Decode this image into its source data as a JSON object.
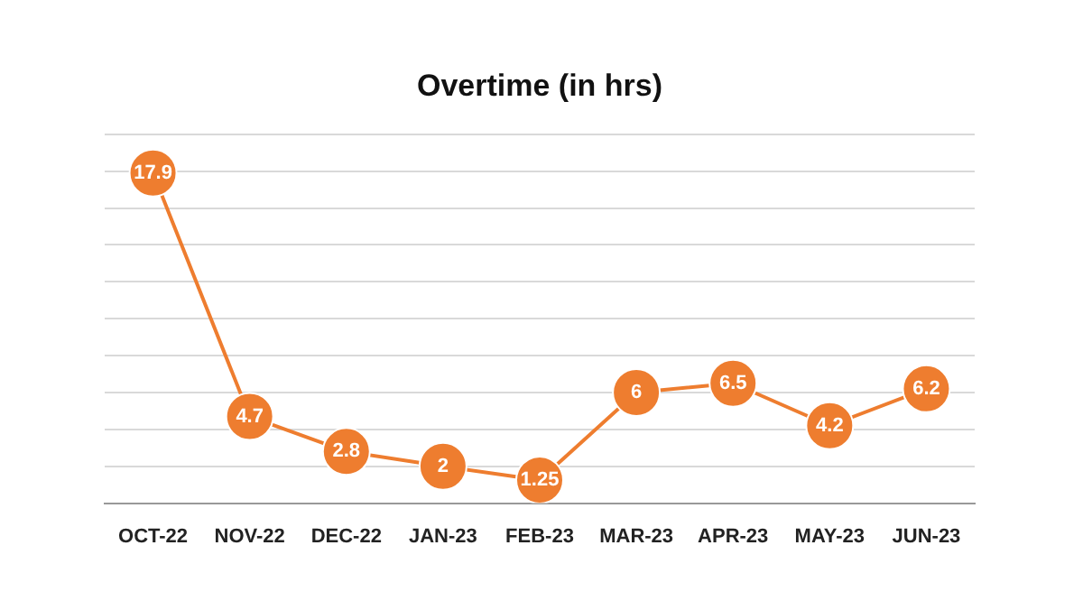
{
  "chart_data": {
    "type": "line",
    "title": "Overtime (in hrs)",
    "categories": [
      "OCT-22",
      "NOV-22",
      "DEC-22",
      "JAN-23",
      "FEB-23",
      "MAR-23",
      "APR-23",
      "MAY-23",
      "JUN-23"
    ],
    "series": [
      {
        "color": "#ee7d2f",
        "values": [
          17.9,
          4.7,
          2.8,
          2,
          1.25,
          6,
          6.5,
          4.2,
          6.2
        ]
      }
    ],
    "ylim": [
      0,
      20
    ],
    "yticks": [
      {
        "value": 0,
        "label": null
      },
      {
        "value": 2,
        "label": null
      },
      {
        "value": 4,
        "label": null
      },
      {
        "value": 6,
        "label": null
      },
      {
        "value": 8,
        "label": null
      },
      {
        "value": 10,
        "label": null
      },
      {
        "value": 12,
        "label": null
      },
      {
        "value": 14,
        "label": null
      },
      {
        "value": 16,
        "label": null
      },
      {
        "value": 18,
        "label": null
      },
      {
        "value": 20,
        "label": null
      }
    ],
    "grid": "y",
    "tick_labels": "x",
    "marker": "circle",
    "data_labels": true,
    "legend": false
  }
}
